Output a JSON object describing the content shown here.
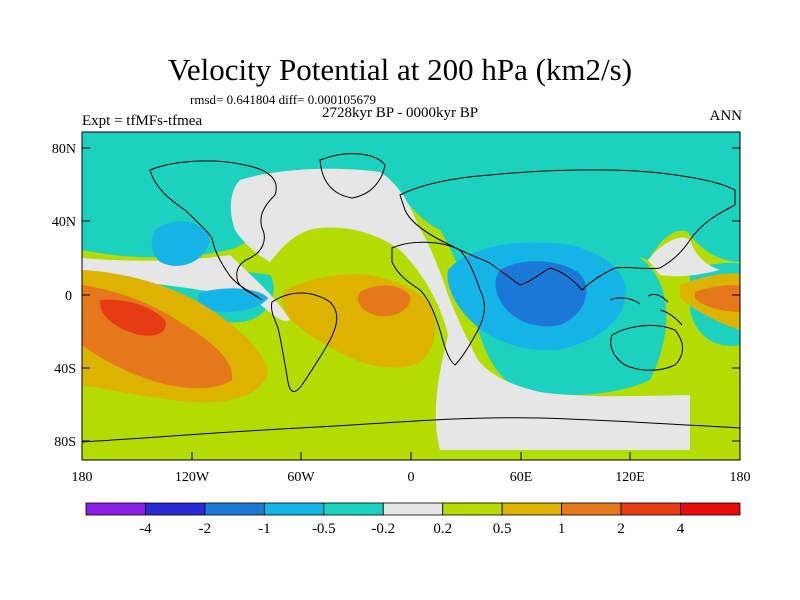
{
  "title": "Velocity Potential at 200 hPa (km2/s)",
  "stats_line": "rmsd= 0.641804 diff= 0.000105679",
  "period": "2728kyr BP - 0000kyr BP",
  "experiment": "Expt = tfMFs-tfmea",
  "season": "ANN",
  "lat_labels": [
    "80N",
    "40N",
    "0",
    "40S",
    "80S"
  ],
  "lon_labels": [
    "180",
    "120W",
    "60W",
    "0",
    "60E",
    "120E",
    "180"
  ],
  "colorbar": {
    "labels": [
      "-4",
      "-2",
      "-1",
      "-0.5",
      "-0.2",
      "0.2",
      "0.5",
      "1",
      "2",
      "4"
    ],
    "colors": [
      "#8a1ee6",
      "#2929d6",
      "#1c78d6",
      "#14b4e6",
      "#1cd2be",
      "#e6e6e6",
      "#b4dc00",
      "#dcb400",
      "#e6781c",
      "#e63c14",
      "#e60a0a"
    ]
  },
  "field_colors": {
    "background": "#b4dc00",
    "neutral": "#e6e6e6",
    "weak_negative": "#1cd2be",
    "moderate_negative": "#14b4e6",
    "strong_negative": "#1c78d6",
    "weak_positive": "#dcb400",
    "strong_positive": "#e6781c"
  }
}
